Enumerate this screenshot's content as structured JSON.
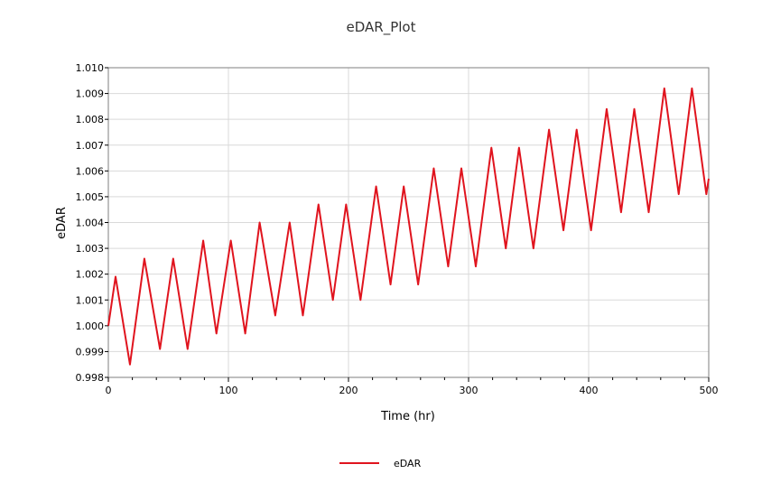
{
  "chart_data": {
    "type": "line",
    "title": "eDAR_Plot",
    "xlabel": "Time (hr)",
    "ylabel": "eDAR",
    "xlim": [
      0,
      500
    ],
    "ylim": [
      0.998,
      1.01
    ],
    "xticks": [
      "0",
      "100",
      "200",
      "300",
      "400",
      "500"
    ],
    "yticks": [
      "0.998",
      "0.999",
      "1.000",
      "1.001",
      "1.002",
      "1.003",
      "1.004",
      "1.005",
      "1.006",
      "1.007",
      "1.008",
      "1.009",
      "1.010"
    ],
    "grid": true,
    "legend_position": "bottom-center",
    "series": [
      {
        "name": "eDAR",
        "color": "#e0141e",
        "points": [
          [
            0,
            1.0
          ],
          [
            6,
            1.0019
          ],
          [
            18,
            0.9985
          ],
          [
            30,
            1.0026
          ],
          [
            43,
            0.9991
          ],
          [
            54,
            1.0026
          ],
          [
            66,
            0.9991
          ],
          [
            79,
            1.0033
          ],
          [
            90,
            0.9997
          ],
          [
            102,
            1.0033
          ],
          [
            114,
            0.9997
          ],
          [
            126,
            1.004
          ],
          [
            139,
            1.0004
          ],
          [
            151,
            1.004
          ],
          [
            162,
            1.0004
          ],
          [
            175,
            1.0047
          ],
          [
            187,
            1.001
          ],
          [
            198,
            1.0047
          ],
          [
            210,
            1.001
          ],
          [
            223,
            1.0054
          ],
          [
            235,
            1.0016
          ],
          [
            246,
            1.0054
          ],
          [
            258,
            1.0016
          ],
          [
            271,
            1.0061
          ],
          [
            283,
            1.0023
          ],
          [
            294,
            1.0061
          ],
          [
            306,
            1.0023
          ],
          [
            319,
            1.0069
          ],
          [
            331,
            1.003
          ],
          [
            342,
            1.0069
          ],
          [
            354,
            1.003
          ],
          [
            367,
            1.0076
          ],
          [
            379,
            1.0037
          ],
          [
            390,
            1.0076
          ],
          [
            402,
            1.0037
          ],
          [
            415,
            1.0084
          ],
          [
            427,
            1.0044
          ],
          [
            438,
            1.0084
          ],
          [
            450,
            1.0044
          ],
          [
            463,
            1.0092
          ],
          [
            475,
            1.0051
          ],
          [
            486,
            1.0092
          ],
          [
            498,
            1.0051
          ],
          [
            500,
            1.0057
          ]
        ]
      }
    ]
  }
}
